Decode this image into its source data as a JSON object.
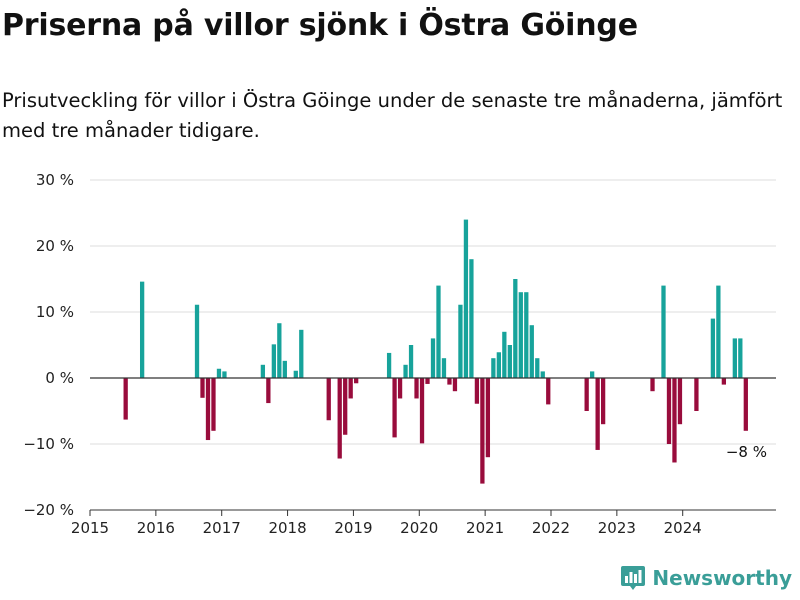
{
  "title": "Priserna på villor sjönk i Östra Göinge",
  "subtitle": "Prisutveckling för villor i Östra Göinge under de senaste tre månaderna, jämfört med tre månader tidigare.",
  "brand": {
    "name": "Newsworthy",
    "logo_icon": "bar-chart-logo-icon",
    "color": "#3a9e98"
  },
  "colors": {
    "positive": "#17a39b",
    "negative": "#990c3c",
    "grid": "#dddddd",
    "zero_line": "#333333"
  },
  "chart_data": {
    "type": "bar",
    "title": "Priserna på villor sjönk i Östra Göinge",
    "xlim": [
      "2015-01",
      "2025-06"
    ],
    "ylim": [
      -20,
      30
    ],
    "grid": true,
    "y_ticks": [
      {
        "value": 30,
        "label": "30 %"
      },
      {
        "value": 20,
        "label": "20 %"
      },
      {
        "value": 10,
        "label": "10 %"
      },
      {
        "value": 0,
        "label": "0 %"
      },
      {
        "value": -10,
        "label": "−10 %"
      },
      {
        "value": -20,
        "label": "−20 %"
      }
    ],
    "x_ticks": [
      {
        "value": "2015-01",
        "label": "2015"
      },
      {
        "value": "2016-01",
        "label": "2016"
      },
      {
        "value": "2017-01",
        "label": "2017"
      },
      {
        "value": "2018-01",
        "label": "2018"
      },
      {
        "value": "2019-01",
        "label": "2019"
      },
      {
        "value": "2020-01",
        "label": "2020"
      },
      {
        "value": "2021-01",
        "label": "2021"
      },
      {
        "value": "2022-01",
        "label": "2022"
      },
      {
        "value": "2023-01",
        "label": "2023"
      },
      {
        "value": "2024-01",
        "label": "2024"
      }
    ],
    "points": [
      {
        "month": "2015-07",
        "value": -6.3
      },
      {
        "month": "2015-10",
        "value": 14.6
      },
      {
        "month": "2016-08",
        "value": 11.1
      },
      {
        "month": "2016-09",
        "value": -3.0
      },
      {
        "month": "2016-10",
        "value": -9.4
      },
      {
        "month": "2016-11",
        "value": -8.0
      },
      {
        "month": "2016-12",
        "value": 1.4
      },
      {
        "month": "2017-01",
        "value": 1.0
      },
      {
        "month": "2017-08",
        "value": 2.0
      },
      {
        "month": "2017-09",
        "value": -3.8
      },
      {
        "month": "2017-10",
        "value": 5.1
      },
      {
        "month": "2017-11",
        "value": 8.3
      },
      {
        "month": "2017-12",
        "value": 2.6
      },
      {
        "month": "2018-02",
        "value": 1.1
      },
      {
        "month": "2018-03",
        "value": 7.3
      },
      {
        "month": "2018-08",
        "value": -6.4
      },
      {
        "month": "2018-10",
        "value": -12.2
      },
      {
        "month": "2018-11",
        "value": -8.6
      },
      {
        "month": "2018-12",
        "value": -3.1
      },
      {
        "month": "2019-01",
        "value": -0.8
      },
      {
        "month": "2019-07",
        "value": 3.8
      },
      {
        "month": "2019-08",
        "value": -9.0
      },
      {
        "month": "2019-09",
        "value": -3.1
      },
      {
        "month": "2019-10",
        "value": 2.0
      },
      {
        "month": "2019-11",
        "value": 5.0
      },
      {
        "month": "2019-12",
        "value": -3.1
      },
      {
        "month": "2020-01",
        "value": -9.9
      },
      {
        "month": "2020-02",
        "value": -0.9
      },
      {
        "month": "2020-03",
        "value": 6.0
      },
      {
        "month": "2020-04",
        "value": 14.0
      },
      {
        "month": "2020-05",
        "value": 3.0
      },
      {
        "month": "2020-06",
        "value": -1.0
      },
      {
        "month": "2020-07",
        "value": -2.0
      },
      {
        "month": "2020-08",
        "value": 11.1
      },
      {
        "month": "2020-09",
        "value": 24.0
      },
      {
        "month": "2020-10",
        "value": 18.0
      },
      {
        "month": "2020-11",
        "value": -3.9
      },
      {
        "month": "2020-12",
        "value": -16.0
      },
      {
        "month": "2021-01",
        "value": -12.0
      },
      {
        "month": "2021-02",
        "value": 3.0
      },
      {
        "month": "2021-03",
        "value": 3.9
      },
      {
        "month": "2021-04",
        "value": 7.0
      },
      {
        "month": "2021-05",
        "value": 5.0
      },
      {
        "month": "2021-06",
        "value": 15.0
      },
      {
        "month": "2021-07",
        "value": 13.0
      },
      {
        "month": "2021-08",
        "value": 13.0
      },
      {
        "month": "2021-09",
        "value": 8.0
      },
      {
        "month": "2021-10",
        "value": 3.0
      },
      {
        "month": "2021-11",
        "value": 1.0
      },
      {
        "month": "2021-12",
        "value": -4.0
      },
      {
        "month": "2022-07",
        "value": -5.0
      },
      {
        "month": "2022-08",
        "value": 1.0
      },
      {
        "month": "2022-09",
        "value": -10.9
      },
      {
        "month": "2022-10",
        "value": -7.0
      },
      {
        "month": "2023-07",
        "value": -2.0
      },
      {
        "month": "2023-09",
        "value": 14.0
      },
      {
        "month": "2023-10",
        "value": -10.0
      },
      {
        "month": "2023-11",
        "value": -12.8
      },
      {
        "month": "2023-12",
        "value": -7.0
      },
      {
        "month": "2024-03",
        "value": -5.0
      },
      {
        "month": "2024-06",
        "value": 9.0
      },
      {
        "month": "2024-07",
        "value": 14.0
      },
      {
        "month": "2024-08",
        "value": -1.0
      },
      {
        "month": "2024-10",
        "value": 6.0
      },
      {
        "month": "2024-11",
        "value": 6.0
      },
      {
        "month": "2024-12",
        "value": -8.0
      }
    ],
    "annotation": {
      "month": "2024-12",
      "label": "−8 %"
    }
  }
}
